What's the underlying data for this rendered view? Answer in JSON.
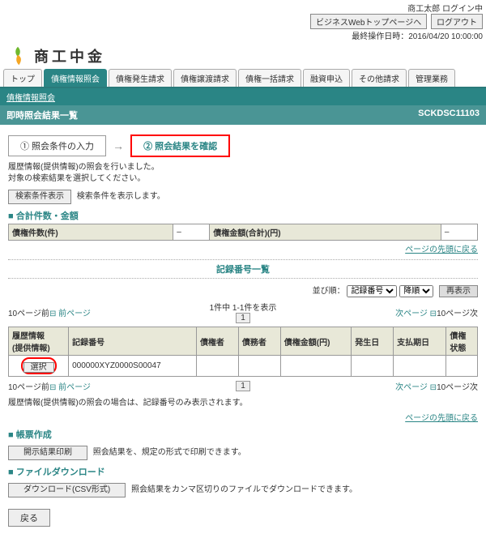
{
  "topbar": {
    "user": "商工太郎 ログイン中",
    "btn1": "ビジネスWebトップページへ",
    "btn2": "ログアウト",
    "ts": "最終操作日時：2016/04/20 10:00:00"
  },
  "brand": "商工中金",
  "tabs": [
    "トップ",
    "債権情報照会",
    "債権発生請求",
    "債権譲渡請求",
    "債権一括請求",
    "融資申込",
    "その他請求",
    "管理業務"
  ],
  "tabActive": 1,
  "sub": "債権情報照会",
  "title": {
    "left": "即時照会結果一覧",
    "right": "SCKDSC11103"
  },
  "flow": {
    "s1": "① 照会条件の入力",
    "s2": "② 照会結果を確認"
  },
  "msg": "履歴情報(提供情報)の照会を行いました。\n対象の検索結果を選択してください。",
  "btnCond": "検索条件表示",
  "btnCondNote": "検索条件を表示します。",
  "sec1": "合計件数・金額",
  "sumCols": [
    "債権件数(件)",
    "債権金額(合計)(円)"
  ],
  "sumVals": [
    "–",
    "–"
  ],
  "topLink": "ページの先頭に戻る",
  "sec2": "記録番号一覧",
  "sort": {
    "label": "並び順：",
    "opt1": "記録番号",
    "opt2": "降順",
    "btn": "再表示"
  },
  "pager": {
    "left10": "10ページ前",
    "prev": "前ページ",
    "info": "1件中 1-1件を表示",
    "page": "1",
    "next": "次ページ",
    "right10": "10ページ次"
  },
  "cols": [
    "履歴情報\n(提供情報)",
    "記録番号",
    "債権者",
    "債務者",
    "債権金額(円)",
    "発生日",
    "支払期日",
    "債権\n状態"
  ],
  "row": {
    "sel": "選択",
    "rec": "000000XYZ0000S00047"
  },
  "note": "履歴情報(提供情報)の照会の場合は、記録番号のみ表示されます。",
  "sec3": "帳票作成",
  "btnPrint": "開示結果印刷",
  "btnPrintNote": "照会結果を、規定の形式で印刷できます。",
  "sec4": "ファイルダウンロード",
  "btnDl": "ダウンロード(CSV形式)",
  "btnDlNote": "照会結果をカンマ区切りのファイルでダウンロードできます。",
  "back": "戻る"
}
